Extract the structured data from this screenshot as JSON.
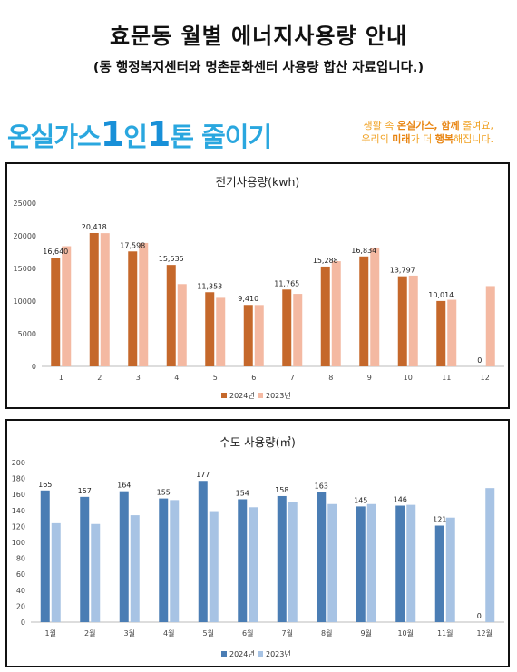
{
  "header": {
    "title": "효문동 월별 에너지사용량 안내",
    "subtitle": "(동 행정복지센터와 명촌문화센터 사용량 합산 자료입니다.)"
  },
  "banner": {
    "slogan_part1": "온실가스",
    "slogan_num1": "1",
    "slogan_part2": "인",
    "slogan_num2": "1",
    "slogan_part3": "톤 줄이기",
    "tagline_line1_a": "생활 속 ",
    "tagline_line1_b": "온실가스, 함께",
    "tagline_line1_c": " 줄여요,",
    "tagline_line2_a": "우리의 ",
    "tagline_line2_b": "미래",
    "tagline_line2_c": "가 더 ",
    "tagline_line2_d": "행복",
    "tagline_line2_e": "해집니다."
  },
  "colors": {
    "elec_2024": "#c5682b",
    "elec_2023": "#f4b9a2",
    "water_2024": "#4a7db4",
    "water_2023": "#a7c3e4"
  },
  "chart_data": [
    {
      "type": "bar",
      "title": "전기사용량(kwh)",
      "categories": [
        "1",
        "2",
        "3",
        "4",
        "5",
        "6",
        "7",
        "8",
        "9",
        "10",
        "11",
        "12"
      ],
      "series": [
        {
          "name": "2024년",
          "values": [
            16640,
            20418,
            17598,
            15535,
            11353,
            9410,
            11765,
            15288,
            16834,
            13797,
            10014,
            0
          ]
        },
        {
          "name": "2023년",
          "values": [
            18400,
            20400,
            18900,
            12600,
            10500,
            9400,
            11100,
            16100,
            18200,
            13900,
            10200,
            12300
          ]
        }
      ],
      "data_labels": [
        "16,640",
        "20,418",
        "17,598",
        "15,535",
        "11,353",
        "9,410",
        "11,765",
        "15,288",
        "16,834",
        "13,797",
        "10,014",
        "0"
      ],
      "yticks": [
        "25000",
        "20000",
        "15000",
        "10000",
        "5000",
        "0"
      ],
      "ylim": [
        0,
        25000
      ],
      "grid": false,
      "legend": "bottom"
    },
    {
      "type": "bar",
      "title": "수도 사용량(㎥)",
      "categories": [
        "1월",
        "2월",
        "3월",
        "4월",
        "5월",
        "6월",
        "7월",
        "8월",
        "9월",
        "10월",
        "11월",
        "12월"
      ],
      "series": [
        {
          "name": "2024년",
          "values": [
            165,
            157,
            164,
            155,
            177,
            154,
            158,
            163,
            145,
            146,
            121,
            0
          ]
        },
        {
          "name": "2023년",
          "values": [
            124,
            123,
            134,
            153,
            138,
            144,
            150,
            148,
            148,
            147,
            131,
            168
          ]
        }
      ],
      "data_labels": [
        "165",
        "157",
        "164",
        "155",
        "177",
        "154",
        "158",
        "163",
        "145",
        "146",
        "121",
        "0"
      ],
      "yticks": [
        "200",
        "180",
        "160",
        "140",
        "120",
        "100",
        "80",
        "60",
        "40",
        "20",
        "0"
      ],
      "ylim": [
        0,
        200
      ],
      "grid": false,
      "legend": "bottom"
    }
  ]
}
